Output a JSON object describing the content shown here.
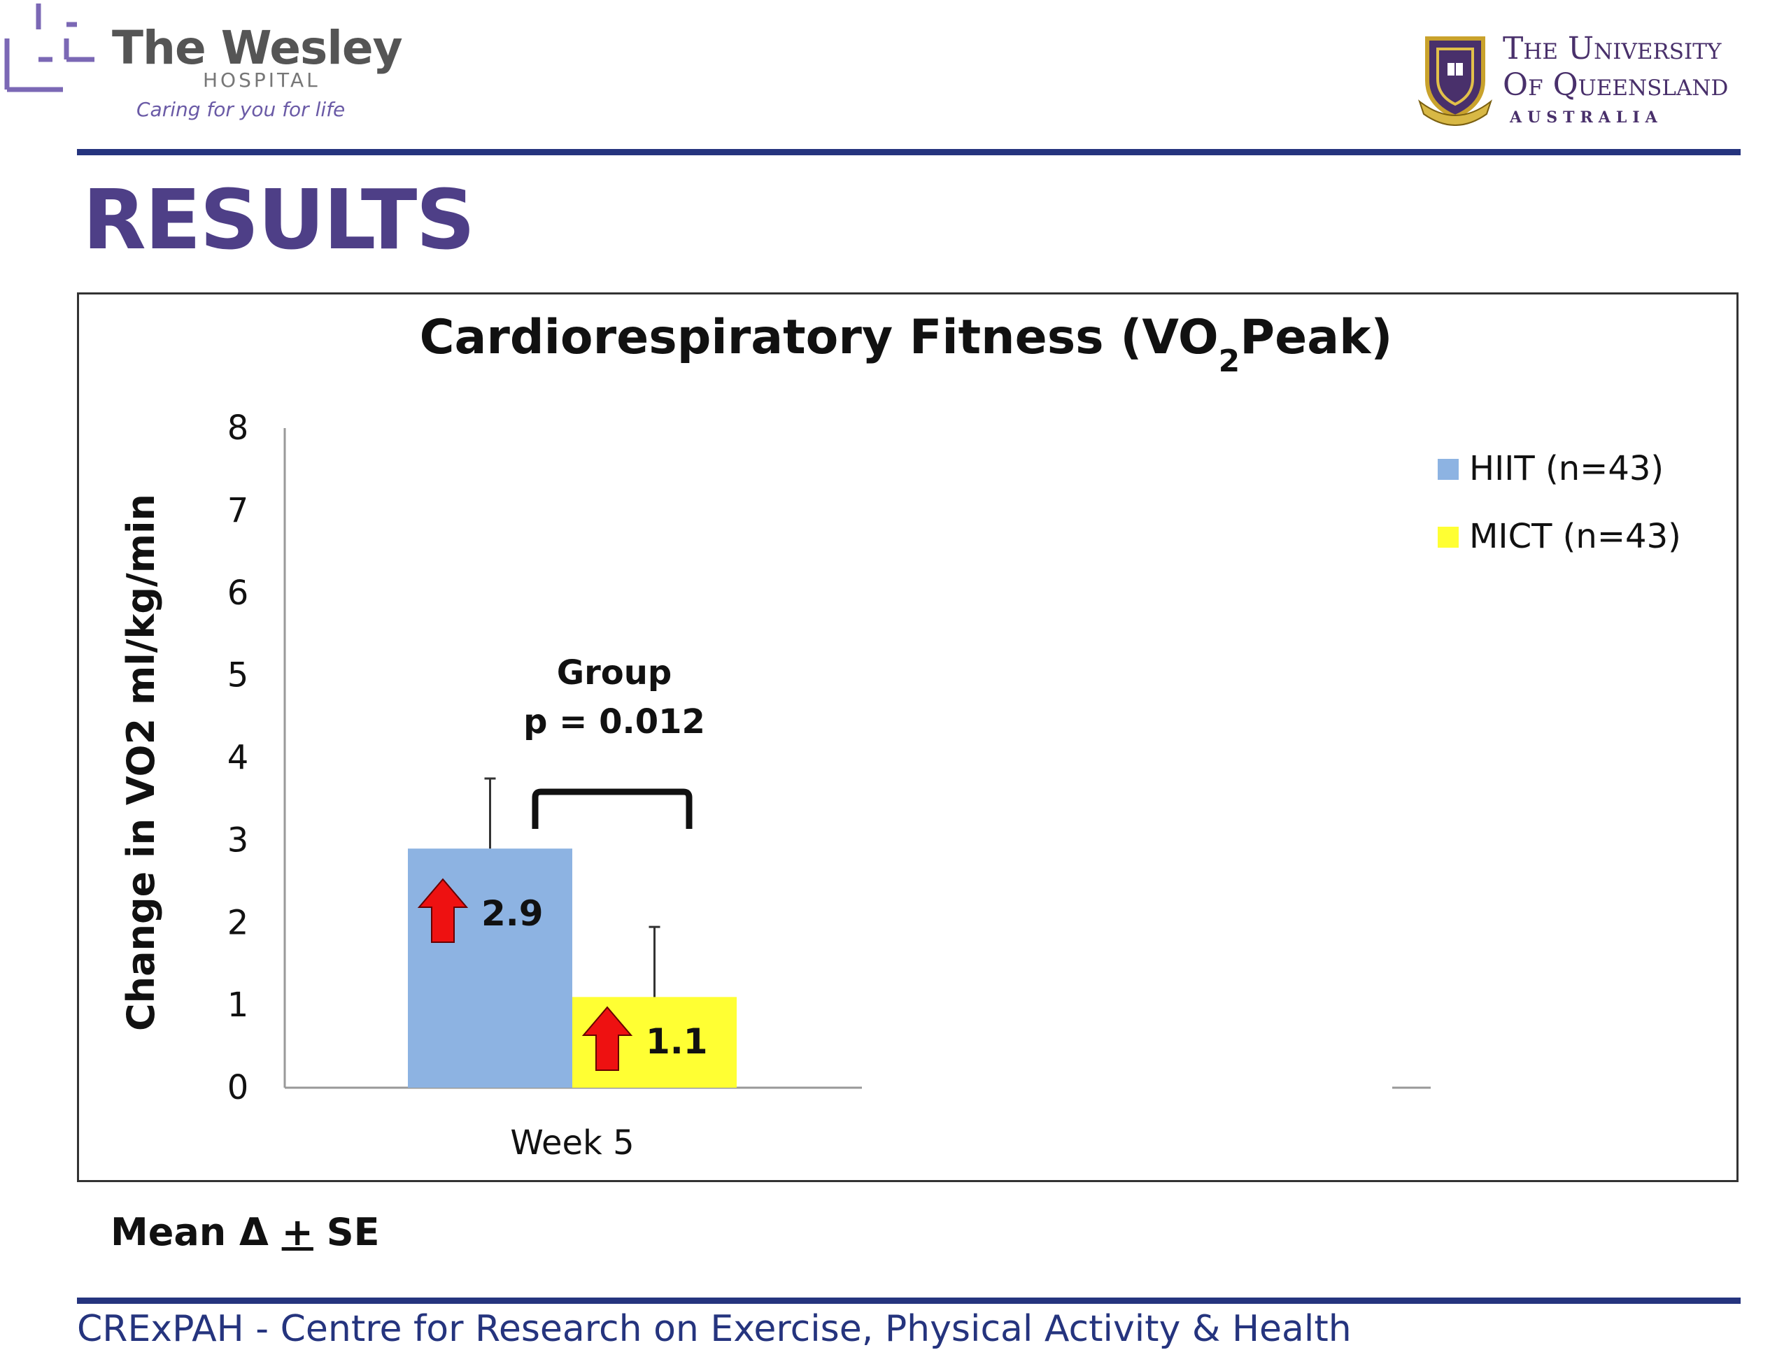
{
  "header": {
    "wesley": {
      "name": "The Wesley",
      "sub": "HOSPITAL",
      "tagline": "Caring for you for life"
    },
    "uq": {
      "line1": "The University",
      "line2": "Of Queensland",
      "line3": "AUSTRALIA"
    }
  },
  "slide": {
    "title": "RESULTS",
    "footnote_prefix": "Mean Δ ",
    "footnote_pm": "+",
    "footnote_suffix": " SE",
    "footer": "CRExPAH - Centre for Research on Exercise, Physical Activity & Health"
  },
  "colors": {
    "hiit": "#8db3e2",
    "mict": "#ffff33",
    "arrow": "#ee1111",
    "title_purple": "#4e3f87",
    "rule_blue": "#25347e"
  },
  "chart_data": {
    "type": "bar",
    "title": "Cardiorespiratory Fitness (VO",
    "title_sub": "2",
    "title_suffix": "Peak)",
    "ylabel": "Change in VO2 ml/kg/min",
    "xlabel": "",
    "categories": [
      "Week 5"
    ],
    "ylim": [
      0,
      8
    ],
    "yticks": [
      "0",
      "1",
      "2",
      "3",
      "4",
      "5",
      "6",
      "7",
      "8"
    ],
    "grid": false,
    "legend_position": "top-right",
    "series": [
      {
        "name": "HIIT (n=43)",
        "values": [
          2.9
        ],
        "error": [
          0.85
        ],
        "labels": [
          "2.9"
        ],
        "color": "#8db3e2"
      },
      {
        "name": "MICT (n=43)",
        "values": [
          1.1
        ],
        "error": [
          0.85
        ],
        "labels": [
          "1.1"
        ],
        "color": "#ffff33"
      }
    ],
    "annotation": {
      "line1": "Group",
      "line2": "p = 0.012"
    }
  }
}
